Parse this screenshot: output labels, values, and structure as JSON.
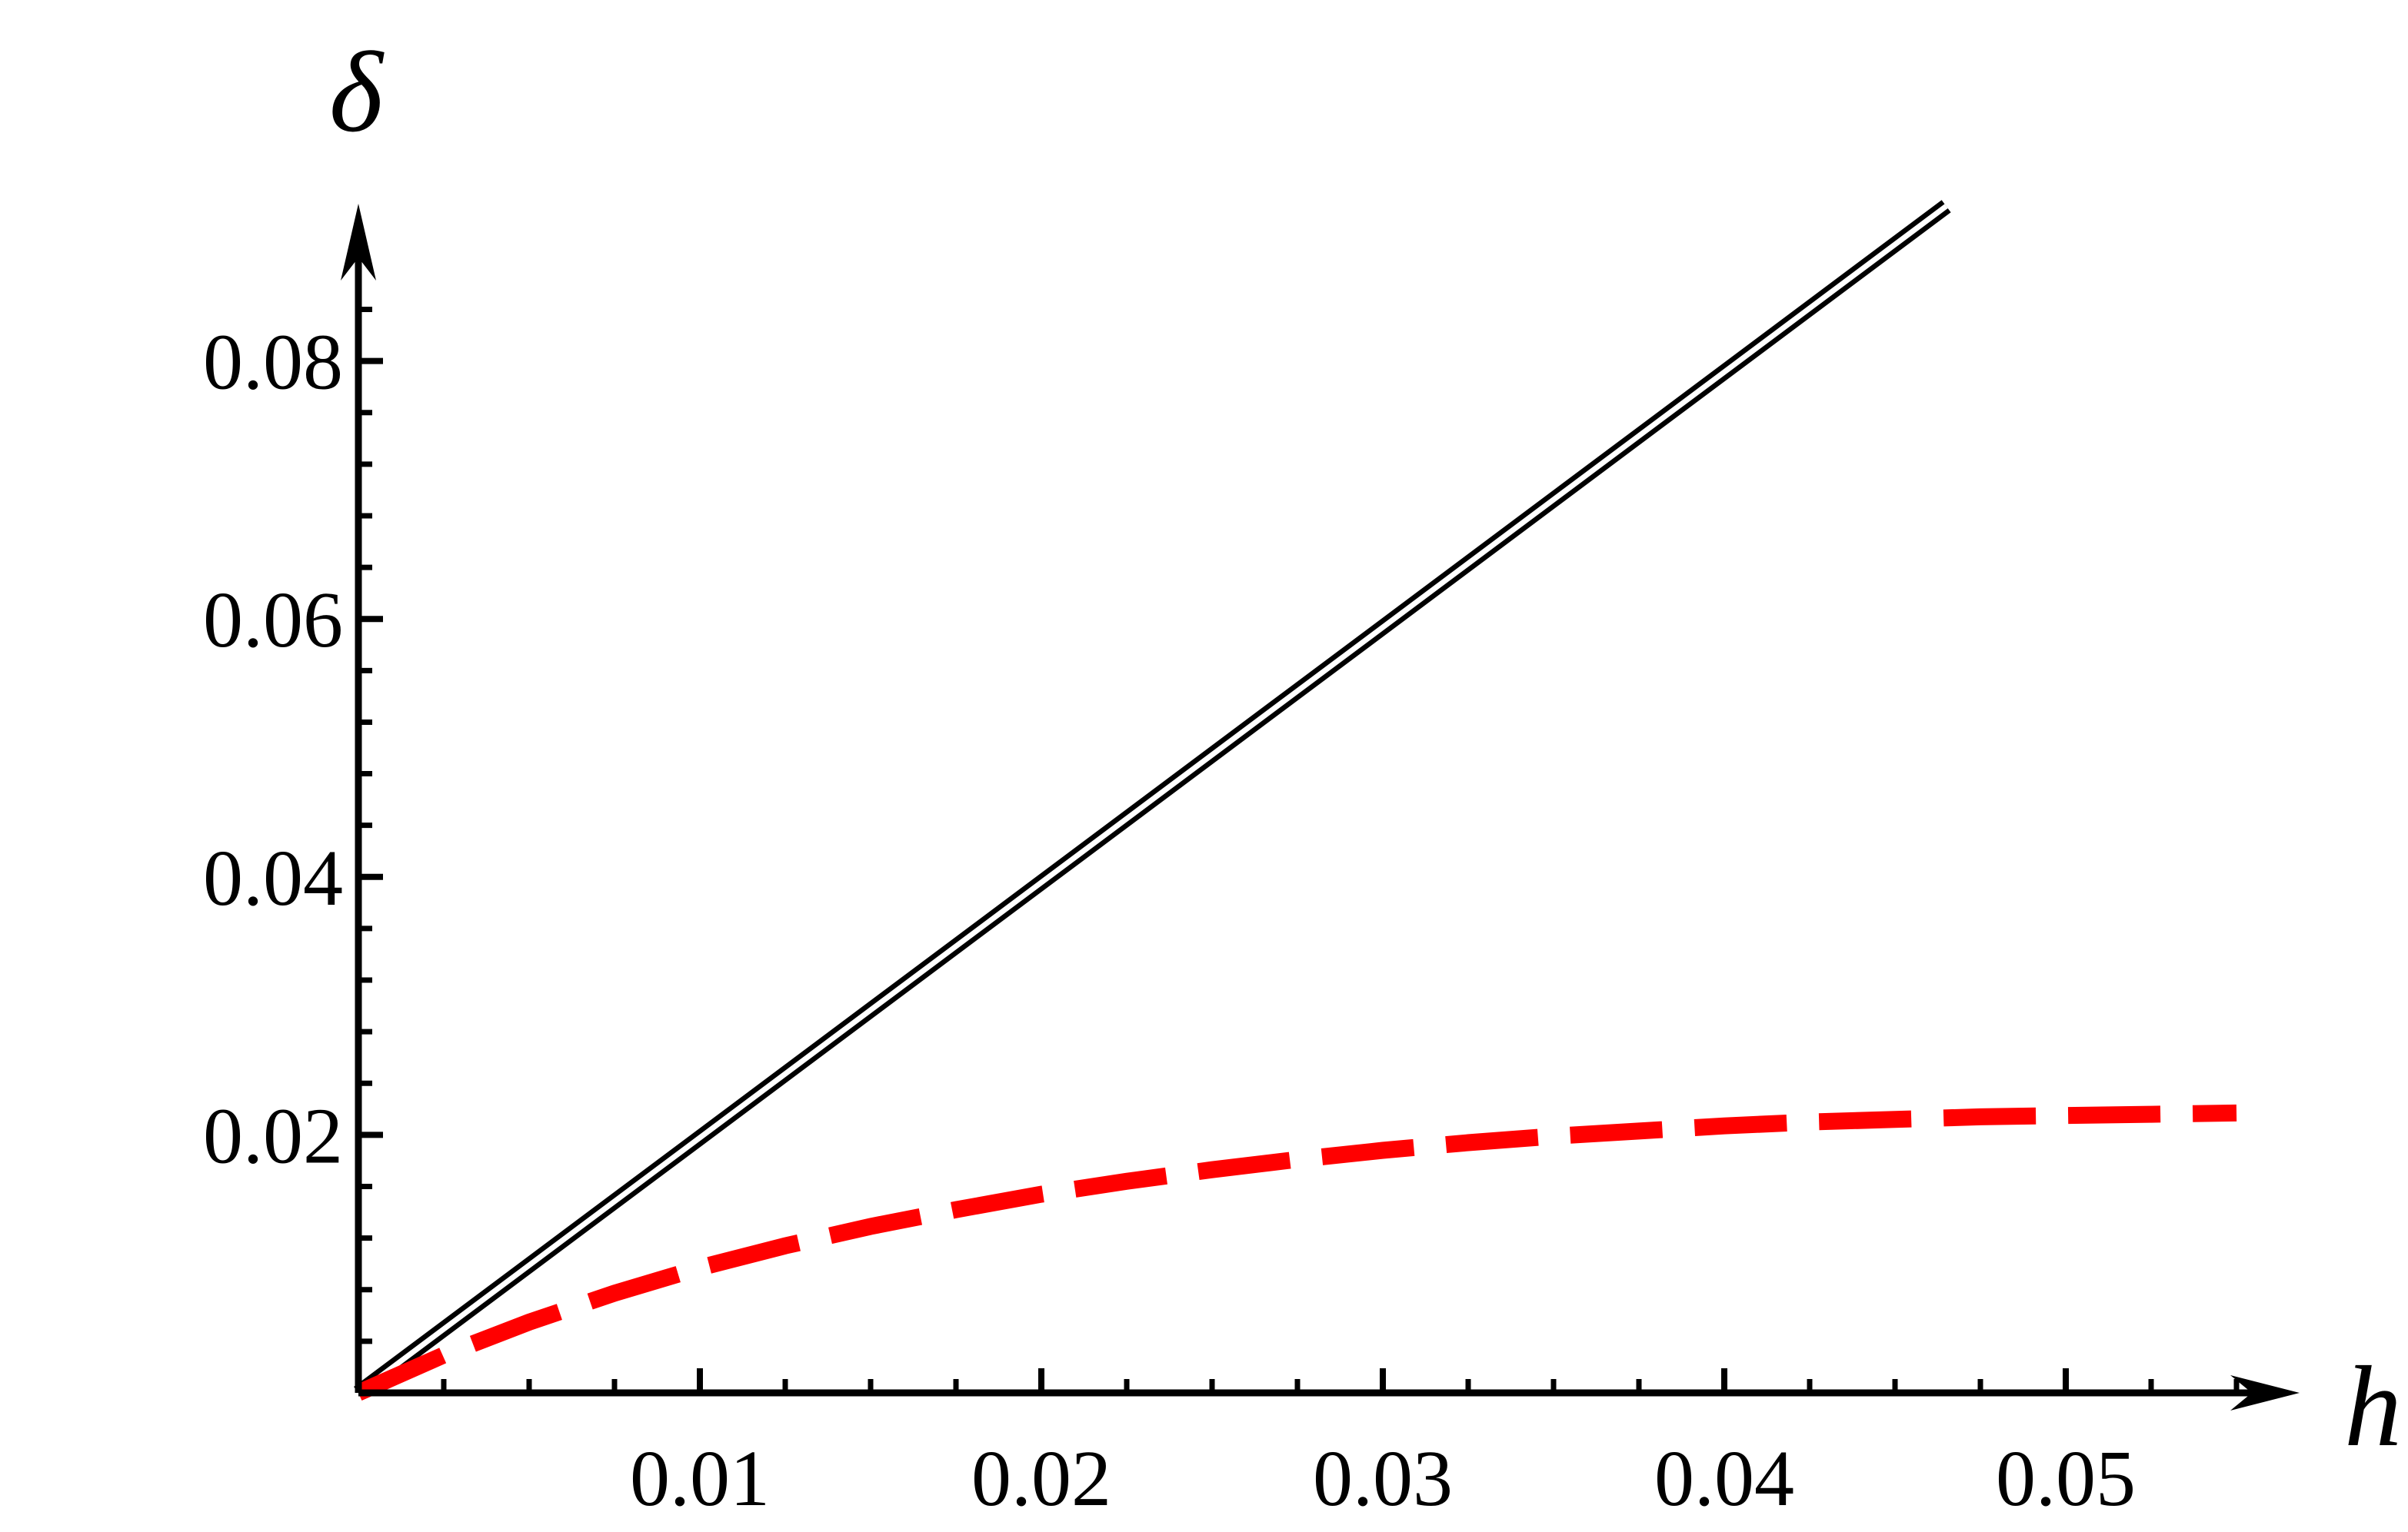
{
  "chart_data": {
    "type": "line",
    "title": "",
    "xlabel": "h",
    "ylabel": "δ",
    "xlim": [
      0,
      0.055
    ],
    "ylim": [
      0,
      0.092
    ],
    "x_ticks": [
      "0.01",
      "0.02",
      "0.03",
      "0.04",
      "0.05"
    ],
    "y_ticks": [
      "0.02",
      "0.04",
      "0.06",
      "0.08"
    ],
    "grid": false,
    "legend": "none",
    "series": [
      {
        "style": "double-solid",
        "color": "#000000",
        "x": [
          0,
          0.0465
        ],
        "y": [
          0,
          0.092
        ]
      },
      {
        "style": "dashed",
        "color": "#ff0000",
        "x": [
          0,
          0.0025,
          0.005,
          0.0075,
          0.01,
          0.0125,
          0.015,
          0.0175,
          0.02,
          0.0225,
          0.025,
          0.0275,
          0.03,
          0.0325,
          0.035,
          0.0375,
          0.04,
          0.0425,
          0.045,
          0.0475,
          0.05,
          0.0525,
          0.055
        ],
        "y": [
          0,
          0.00293,
          0.00548,
          0.00773,
          0.0097,
          0.0114,
          0.0129,
          0.0142,
          0.0154,
          0.0164,
          0.0173,
          0.0181,
          0.0188,
          0.0194,
          0.0199,
          0.0203,
          0.0207,
          0.021,
          0.0212,
          0.0214,
          0.0215,
          0.0216,
          0.0217
        ]
      }
    ]
  }
}
